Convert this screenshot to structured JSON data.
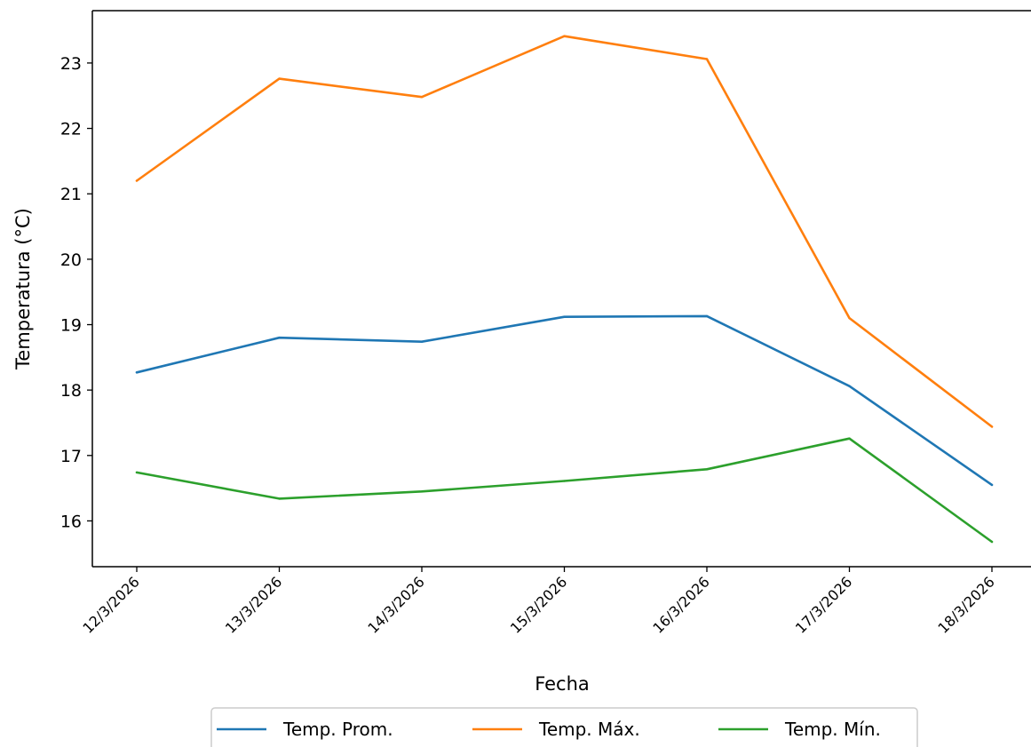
{
  "chart_data": {
    "type": "line",
    "title": "",
    "xlabel": "Fecha",
    "ylabel": "Temperatura (°C)",
    "categories": [
      "12/3/2026",
      "13/3/2026",
      "14/3/2026",
      "15/3/2026",
      "16/3/2026",
      "17/3/2026",
      "18/3/2026"
    ],
    "ylim": [
      15.3,
      23.8
    ],
    "yticks": [
      16,
      17,
      18,
      19,
      20,
      21,
      22,
      23
    ],
    "grid": false,
    "legend_position": "bottom-center",
    "series": [
      {
        "name": "Temp. Prom.",
        "color": "#1f77b4",
        "values": [
          18.27,
          18.8,
          18.74,
          19.12,
          19.13,
          18.06,
          16.55
        ]
      },
      {
        "name": "Temp. Máx.",
        "color": "#ff7f0e",
        "values": [
          21.2,
          22.76,
          22.48,
          23.41,
          23.06,
          19.1,
          17.44
        ]
      },
      {
        "name": "Temp. Mín.",
        "color": "#2ca02c",
        "values": [
          16.74,
          16.34,
          16.45,
          16.61,
          16.79,
          17.26,
          15.68
        ]
      }
    ]
  }
}
